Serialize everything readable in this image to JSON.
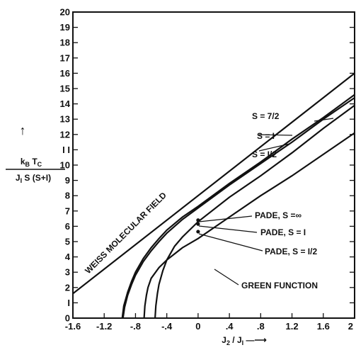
{
  "chart_data": {
    "type": "line",
    "xlim": [
      -1.6,
      2.0
    ],
    "ylim": [
      0,
      20
    ],
    "grid": false,
    "x_ticks": [
      {
        "v": -1.6,
        "label": "-1.6"
      },
      {
        "v": -1.2,
        "label": "-1.2"
      },
      {
        "v": -0.8,
        "label": "-.8"
      },
      {
        "v": -0.4,
        "label": "-.4"
      },
      {
        "v": 0,
        "label": "0"
      },
      {
        "v": 0.4,
        "label": ".4"
      },
      {
        "v": 0.8,
        "label": ".8"
      },
      {
        "v": 1.2,
        "label": "1.2"
      },
      {
        "v": 1.6,
        "label": "1.6"
      },
      {
        "v": 2.0,
        "label": "2"
      }
    ],
    "y_ticks": [
      {
        "v": 0,
        "label": "0"
      },
      {
        "v": 1,
        "label": "I"
      },
      {
        "v": 2,
        "label": "2"
      },
      {
        "v": 3,
        "label": "3"
      },
      {
        "v": 4,
        "label": "4"
      },
      {
        "v": 5,
        "label": "5"
      },
      {
        "v": 6,
        "label": "6"
      },
      {
        "v": 7,
        "label": "7"
      },
      {
        "v": 8,
        "label": "8"
      },
      {
        "v": 9,
        "label": "9"
      },
      {
        "v": 10,
        "label": "10"
      },
      {
        "v": 11,
        "label": "I I"
      },
      {
        "v": 12,
        "label": "12"
      },
      {
        "v": 13,
        "label": "13"
      },
      {
        "v": 14,
        "label": "14"
      },
      {
        "v": 15,
        "label": "15"
      },
      {
        "v": 16,
        "label": "16"
      },
      {
        "v": 17,
        "label": "17"
      },
      {
        "v": 18,
        "label": "18"
      },
      {
        "v": 19,
        "label": "19"
      },
      {
        "v": 20,
        "label": "20"
      }
    ],
    "xlabel": {
      "main": "J",
      "sub1": "2",
      "mid": " / J",
      "sub2": "I",
      "arrow": " —⟶"
    },
    "ylabel": {
      "arrow": "↑",
      "num_k": "k",
      "num_sub": "B",
      "num_t": " T",
      "num_sub2": "C",
      "den_j": "J",
      "den_sub": "I",
      "den_rest": " S (S+I)"
    },
    "series": [
      {
        "name": "WEISS MOLECULAR FIELD",
        "x": [
          -1.6,
          2.0
        ],
        "y": [
          1.6,
          16.0
        ]
      },
      {
        "name": "S = 7/2",
        "x": [
          -0.97,
          -0.95,
          -0.9,
          -0.85,
          -0.8,
          -0.7,
          -0.6,
          -0.5,
          -0.4,
          -0.2,
          0,
          0.4,
          0.8,
          1.2,
          1.6,
          2.0
        ],
        "y": [
          0,
          0.8,
          1.7,
          2.4,
          3.0,
          3.9,
          4.6,
          5.2,
          5.75,
          6.6,
          7.3,
          8.8,
          10.2,
          11.7,
          13.1,
          14.6
        ]
      },
      {
        "name": "S = I",
        "x": [
          -0.96,
          -0.94,
          -0.9,
          -0.85,
          -0.8,
          -0.7,
          -0.6,
          -0.5,
          -0.4,
          -0.2,
          0,
          0.4,
          0.8,
          1.2,
          1.6,
          2.0
        ],
        "y": [
          0,
          0.7,
          1.5,
          2.2,
          2.8,
          3.7,
          4.4,
          5.0,
          5.55,
          6.45,
          7.2,
          8.7,
          10.1,
          11.5,
          13.0,
          14.4
        ]
      },
      {
        "name": "S = I/2",
        "x": [
          -0.55,
          -0.54,
          -0.52,
          -0.5,
          -0.45,
          -0.4,
          -0.3,
          -0.2,
          0,
          0.4,
          0.8,
          1.2,
          1.6,
          2.0
        ],
        "y": [
          0,
          0.8,
          1.6,
          2.2,
          3.1,
          3.8,
          4.7,
          5.3,
          6.3,
          7.9,
          9.3,
          10.8,
          12.4,
          13.9
        ]
      },
      {
        "name": "GREEN FUNCTION",
        "x": [
          -0.69,
          -0.68,
          -0.66,
          -0.64,
          -0.6,
          -0.5,
          -0.4,
          -0.2,
          0,
          0.4,
          0.8,
          1.2,
          1.6,
          2.0
        ],
        "y": [
          0,
          0.8,
          1.5,
          2.0,
          2.6,
          3.3,
          3.8,
          4.6,
          5.2,
          6.6,
          8.0,
          9.3,
          10.7,
          12.1
        ]
      }
    ],
    "pade_points": [
      {
        "name": "PADE, S = ∞",
        "x": 0,
        "y": 6.4
      },
      {
        "name": "PADE, S = I",
        "x": 0,
        "y": 6.15
      },
      {
        "name": "PADE, S = I/2",
        "x": 0,
        "y": 5.65
      }
    ],
    "annotations": [
      {
        "text": "S = 7/2"
      },
      {
        "text": "S = I"
      },
      {
        "text": "S = I/2"
      },
      {
        "text": "PADE, S =∞"
      },
      {
        "text": "PADE, S = I"
      },
      {
        "text": "PADE, S = I/2"
      },
      {
        "text": "GREEN FUNCTION"
      }
    ],
    "diagonal_label": "WEISS MOLECULAR FIELD"
  }
}
